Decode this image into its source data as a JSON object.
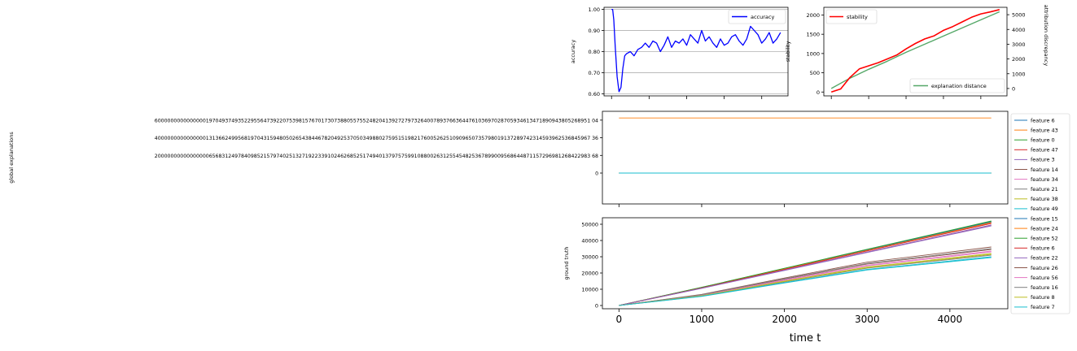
{
  "chart_data": [
    {
      "type": "line",
      "ylabel": "accuracy",
      "xlim": [
        -200,
        4700
      ],
      "ylim": [
        0.59,
        1.01
      ],
      "x_ticks": [
        0,
        1000,
        2000,
        3000,
        4000
      ],
      "y_ticks": [
        0.6,
        0.7,
        0.8,
        0.9,
        1.0
      ],
      "y_tick_labels": [
        "0.60",
        "0.70",
        "0.80",
        "0.90",
        "1.00"
      ],
      "grid": "y",
      "legend": "top-right",
      "series": [
        {
          "name": "accuracy",
          "color": "#0000ff",
          "x": [
            0,
            30,
            60,
            100,
            150,
            200,
            250,
            300,
            350,
            400,
            500,
            600,
            700,
            800,
            900,
            1000,
            1100,
            1200,
            1300,
            1400,
            1500,
            1600,
            1700,
            1800,
            1900,
            2000,
            2100,
            2200,
            2300,
            2400,
            2500,
            2600,
            2700,
            2800,
            2900,
            3000,
            3100,
            3200,
            3300,
            3400,
            3500,
            3600,
            3700,
            3800,
            3900,
            4000,
            4100,
            4200,
            4300,
            4400,
            4500
          ],
          "values": [
            1.0,
            1.0,
            0.95,
            0.82,
            0.68,
            0.61,
            0.63,
            0.72,
            0.78,
            0.79,
            0.8,
            0.78,
            0.81,
            0.82,
            0.84,
            0.82,
            0.85,
            0.84,
            0.8,
            0.83,
            0.87,
            0.82,
            0.85,
            0.84,
            0.86,
            0.83,
            0.88,
            0.86,
            0.84,
            0.9,
            0.85,
            0.87,
            0.84,
            0.82,
            0.86,
            0.83,
            0.84,
            0.87,
            0.88,
            0.85,
            0.83,
            0.86,
            0.92,
            0.9,
            0.88,
            0.84,
            0.86,
            0.89,
            0.84,
            0.86,
            0.89
          ]
        }
      ]
    },
    {
      "type": "line",
      "ylabel": "stability",
      "y2label": "attribution discrepancy",
      "xlim": [
        -200,
        4700
      ],
      "ylim": [
        -100,
        2200
      ],
      "y2lim": [
        -500,
        5500
      ],
      "x_ticks": [
        0,
        1000,
        2000,
        3000,
        4000
      ],
      "y_ticks": [
        0,
        500,
        1000,
        1500,
        2000
      ],
      "y2_ticks": [
        0,
        1000,
        2000,
        3000,
        4000,
        5000
      ],
      "grid": "off",
      "series": [
        {
          "name": "stability",
          "axis": "left",
          "legend": "top-left",
          "color": "#ff0000",
          "x": [
            0,
            250,
            500,
            750,
            1000,
            1250,
            1500,
            1750,
            2000,
            2250,
            2500,
            2750,
            3000,
            3250,
            3500,
            3750,
            4000,
            4250,
            4500
          ],
          "values": [
            0,
            80,
            380,
            600,
            680,
            760,
            860,
            960,
            1120,
            1260,
            1380,
            1460,
            1600,
            1700,
            1820,
            1940,
            2030,
            2080,
            2140
          ]
        },
        {
          "name": "explanation distance",
          "axis": "right",
          "legend": "bottom-right",
          "color": "#55a868",
          "x": [
            0,
            500,
            1000,
            1500,
            2000,
            2500,
            3000,
            3500,
            4000,
            4500
          ],
          "values": [
            0,
            700,
            1300,
            1850,
            2450,
            3000,
            3550,
            4100,
            4650,
            5200
          ]
        }
      ]
    },
    {
      "type": "line",
      "ylabel": "global explanations",
      "xlim": [
        -200,
        4700
      ],
      "ylim": [
        -3.5e+96,
        7e+96
      ],
      "y_ticks": [
        0,
        2e+96,
        4e+96,
        6e+96
      ],
      "y_tick_labels": [
        "0",
        "2000000000000000065683124978409852157974025132719223391024626852517494013797575991088002631255454825367899009568644871157296981268422983 68",
        "4000000000000000131366249956819704315948050265438446782049253705034988027595151982176005262510909650735798019137289742314593962536845967 36",
        "6000000000000000197049374935229556473922075398157670173073880557552482041392727973264007893766364476103697028705934613471890943805268951 04"
      ],
      "constant_series_value": 6.25e+96,
      "legend": "right-outside",
      "series_names": [
        "feature 6",
        "feature 43",
        "feature 0",
        "feature 47",
        "feature 3",
        "feature 14",
        "feature 34",
        "feature 21",
        "feature 38",
        "feature 49",
        "feature 15",
        "feature 24",
        "feature 52",
        "feature 6",
        "feature 22",
        "feature 26",
        "feature 56",
        "feature 16",
        "feature 8",
        "feature 7"
      ],
      "series_colors": [
        "#1f77b4",
        "#ff7f0e",
        "#2ca02c",
        "#d62728",
        "#9467bd",
        "#8c564b",
        "#e377c2",
        "#7f7f7f",
        "#bcbd22",
        "#17becf",
        "#1f77b4",
        "#ff7f0e",
        "#2ca02c",
        "#d62728",
        "#9467bd",
        "#8c564b",
        "#e377c2",
        "#7f7f7f",
        "#bcbd22",
        "#17becf"
      ]
    },
    {
      "type": "line",
      "ylabel": "ground truth",
      "xlabel": "time t",
      "xlim": [
        -200,
        4700
      ],
      "ylim": [
        -2000,
        54000
      ],
      "x_ticks": [
        0,
        1000,
        2000,
        3000,
        4000
      ],
      "y_ticks": [
        0,
        10000,
        20000,
        30000,
        40000,
        50000
      ],
      "x": [
        0,
        4500
      ],
      "end_values": [
        51500,
        51000,
        51800,
        49500,
        49000,
        36000,
        33000,
        31000,
        32000,
        29500,
        51500,
        51000,
        52000,
        50500,
        49500,
        34500,
        33500,
        35000,
        31500,
        30000
      ]
    }
  ]
}
